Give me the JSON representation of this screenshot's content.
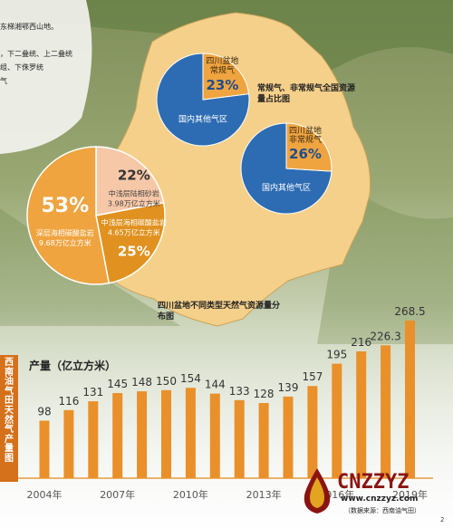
{
  "intro_lines": [
    "东梯湘鄂西山地。",
    "",
    "，下二叠统、上二叠统",
    "组、下侏罗统",
    "气"
  ],
  "side_title": "西南油气田天然气产量图",
  "unit_label": "产量（亿立方米）",
  "note_top": "常规气、非常规气全国资源量占比图",
  "note_bottom": "四川盆地不同类型天然气资源量分布图",
  "logo_text": "CNZZYZ",
  "logo_url": "www.cnzzyz.com",
  "source": "（数据来源：西南油气田）",
  "corner_mark": "2",
  "colors": {
    "bar": "#e9902b",
    "blue": "#2d6cb3",
    "orange": "#efa440",
    "pink": "#f6c8a8",
    "dark_orange": "#e0911f",
    "map": "#f5d08a"
  },
  "chart_data": [
    {
      "type": "pie",
      "title": "",
      "slices": [
        {
          "label": "四川盆地常规气",
          "value": 23,
          "display": "23%"
        },
        {
          "label": "国内其他气区",
          "value": 77
        }
      ]
    },
    {
      "type": "pie",
      "title": "",
      "slices": [
        {
          "label": "四川盆地非常规气",
          "value": 26,
          "display": "26%"
        },
        {
          "label": "国内其他气区",
          "value": 74
        }
      ]
    },
    {
      "type": "pie",
      "title": "",
      "slices": [
        {
          "label": "深层海相碳酸盐岩",
          "sublabel": "9.68万亿立方米",
          "value": 53,
          "display": "53%"
        },
        {
          "label": "中浅层陆相砂岩",
          "sublabel": "3.98万亿立方米",
          "value": 22,
          "display": "22%"
        },
        {
          "label": "中浅层海相碳酸盐岩",
          "sublabel": "4.65万亿立方米",
          "value": 25,
          "display": "25%"
        }
      ]
    },
    {
      "type": "bar",
      "title": "",
      "ylabel": "产量（亿立方米）",
      "categories": [
        "2004年",
        "2005年",
        "2006年",
        "2007年",
        "2008年",
        "2009年",
        "2010年",
        "2011年",
        "2012年",
        "2013年",
        "2014年",
        "2015年",
        "2016年",
        "2017年",
        "2018年",
        "2019年"
      ],
      "tick_labels": [
        "2004年",
        "2007年",
        "2010年",
        "2013年",
        "2016年",
        "2019年"
      ],
      "values": [
        98,
        116,
        131,
        145,
        148,
        150,
        154,
        144,
        133,
        128,
        139,
        157,
        195,
        216,
        226.3,
        268.5
      ],
      "value_labels": [
        "98",
        "116",
        "131",
        "145",
        "148",
        "150",
        "154",
        "144",
        "133",
        "128",
        "139",
        "157",
        "195",
        "216",
        "226.3",
        "268.5"
      ],
      "ylim": [
        0,
        290
      ]
    }
  ]
}
